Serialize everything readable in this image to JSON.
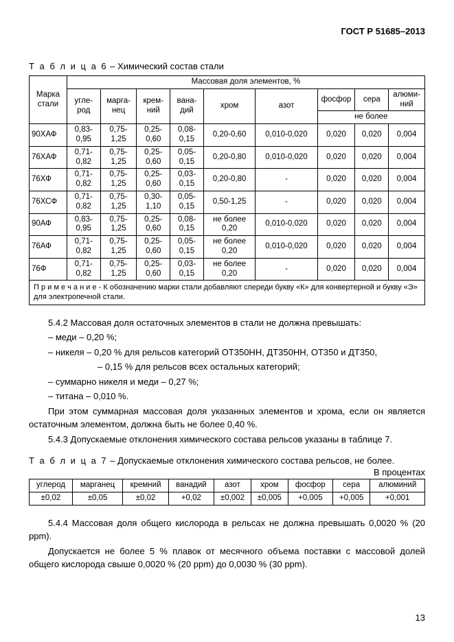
{
  "header": {
    "doc_code": "ГОСТ Р 51685–2013"
  },
  "table6": {
    "caption_spaced": "Т а б л и ц а  6",
    "caption_rest": " – Химический состав стали",
    "group_header": "Массовая доля элементов, %",
    "col_steel": "Марка стали",
    "cols": [
      "угле-род",
      "марга-нец",
      "крем-ний",
      "вана-дий",
      "хром",
      "азот",
      "фосфор",
      "сера",
      "алюми-ний"
    ],
    "no_more": "не более",
    "rows": [
      {
        "steel": "90ХАФ",
        "c": "0,83- 0,95",
        "mn": "0,75- 1,25",
        "si": "0,25- 0,60",
        "v": "0,08- 0,15",
        "cr": "0,20-0,60",
        "n": "0,010-0,020",
        "p": "0,020",
        "s": "0,020",
        "al": "0,004"
      },
      {
        "steel": "76ХАФ",
        "c": "0,71- 0,82",
        "mn": "0,75- 1,25",
        "si": "0,25- 0,60",
        "v": "0,05- 0,15",
        "cr": "0,20-0,80",
        "n": "0,010-0,020",
        "p": "0,020",
        "s": "0,020",
        "al": "0,004"
      },
      {
        "steel": "76ХФ",
        "c": "0,71- 0,82",
        "mn": "0,75- 1,25",
        "si": "0,25- 0,60",
        "v": "0,03- 0,15",
        "cr": "0,20-0,80",
        "n": "-",
        "p": "0,020",
        "s": "0,020",
        "al": "0,004"
      },
      {
        "steel": "76ХСФ",
        "c": "0,71- 0,82",
        "mn": "0,75- 1,25",
        "si": "0,30- 1,10",
        "v": "0,05- 0,15",
        "cr": "0,50-1,25",
        "n": "-",
        "p": "0,020",
        "s": "0,020",
        "al": "0,004"
      },
      {
        "steel": "90АФ",
        "c": "0,83- 0,95",
        "mn": "0,75- 1,25",
        "si": "0,25- 0,60",
        "v": "0,08- 0,15",
        "cr": "не более 0,20",
        "n": "0,010-0,020",
        "p": "0,020",
        "s": "0,020",
        "al": "0,004"
      },
      {
        "steel": "76АФ",
        "c": "0,71- 0,82",
        "mn": "0,75- 1,25",
        "si": "0,25- 0,60",
        "v": "0,05- 0,15",
        "cr": "не более 0,20",
        "n": "0,010-0,020",
        "p": "0,020",
        "s": "0,020",
        "al": "0,004"
      },
      {
        "steel": "76Ф",
        "c": "0,71- 0,82",
        "mn": "0,75- 1,25",
        "si": "0,25- 0,60",
        "v": "0,03- 0,15",
        "cr": "не более 0,20",
        "n": "-",
        "p": "0,020",
        "s": "0,020",
        "al": "0,004"
      }
    ],
    "note": "П р и м е ч а н и е - К обозначению марки стали добавляют спереди букву «К» для конвертерной и букву «Э» для электропечной стали."
  },
  "paras": {
    "p1": "5.4.2 Массовая доля остаточных элементов в стали не должна превышать:",
    "p2": "– меди – 0,20 %;",
    "p3": "– никеля – 0,20 %  для рельсов категорий ОТ350НН, ДТ350НН, ОТ350 и ДТ350,",
    "p4": "– 0,15 %  для рельсов всех остальных категорий;",
    "p5": "– суммарно никеля и меди – 0,27 %;",
    "p6": "– титана – 0,010 %.",
    "p7": "При этом суммарная массовая доля указанных элементов и хрома, если он является остаточным элементом, должна быть не более 0,40 %.",
    "p8": "5.4.3 Допускаемые отклонения химического состава рельсов указаны в таблице 7.",
    "p9": "5.4.4 Массовая доля общего кислорода в рельсах не должна превышать 0,0020 % (20 ppm).",
    "p10": "Допускается не более 5 % плавок от месячного объема поставки с массовой долей общего кислорода свыше 0,0020 % (20 ppm) до 0,0030 % (30 ppm)."
  },
  "table7": {
    "caption_spaced": "Т а б л и ц а  7",
    "caption_rest": " – Допускаемые отклонения химического состава рельсов, не более.",
    "units": "В процентах",
    "cols": [
      "углерод",
      "марганец",
      "кремний",
      "ванадий",
      "азот",
      "хром",
      "фосфор",
      "сера",
      "алюминий"
    ],
    "vals": [
      "±0,02",
      "±0,05",
      "±0,02",
      "+0,02",
      "±0,002",
      "±0,005",
      "+0,005",
      "+0,005",
      "+0,001"
    ]
  },
  "page_number": "13"
}
